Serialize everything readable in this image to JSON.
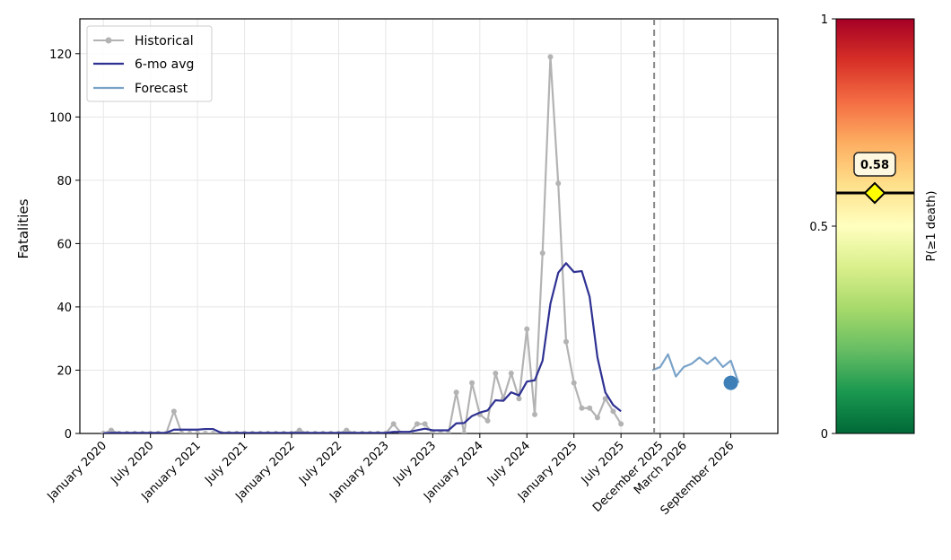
{
  "chart_data": [
    {
      "type": "line",
      "ylabel": "Fatalities",
      "ylim": [
        0,
        131
      ],
      "y_ticks": [
        0,
        20,
        40,
        60,
        80,
        100,
        120
      ],
      "x_ticks": [
        {
          "date": "2020-01",
          "label": "January 2020"
        },
        {
          "date": "2020-07",
          "label": "July 2020"
        },
        {
          "date": "2021-01",
          "label": "January 2021"
        },
        {
          "date": "2021-07",
          "label": "July 2021"
        },
        {
          "date": "2022-01",
          "label": "January 2022"
        },
        {
          "date": "2022-07",
          "label": "July 2022"
        },
        {
          "date": "2023-01",
          "label": "January 2023"
        },
        {
          "date": "2023-07",
          "label": "July 2023"
        },
        {
          "date": "2024-01",
          "label": "January 2024"
        },
        {
          "date": "2024-07",
          "label": "July 2024"
        },
        {
          "date": "2025-01",
          "label": "January 2025"
        },
        {
          "date": "2025-07",
          "label": "July 2025"
        },
        {
          "date": "2025-12",
          "label": "December 2025"
        },
        {
          "date": "2026-03",
          "label": "March 2026"
        },
        {
          "date": "2026-09",
          "label": "September 2026"
        }
      ],
      "grid": true,
      "legend_position": "top-left",
      "forecast_start": "2025-11",
      "series": [
        {
          "name": "Historical",
          "color": "#b3b3b3",
          "marker": "circle",
          "start": "2020-01",
          "values": [
            0,
            1,
            0,
            0,
            0,
            0,
            0,
            0,
            0,
            7,
            0,
            0,
            0,
            0,
            0,
            0,
            0,
            0,
            0,
            0,
            0,
            0,
            0,
            0,
            0,
            1,
            0,
            0,
            0,
            0,
            0,
            1,
            0,
            0,
            0,
            0,
            0,
            3,
            0,
            0,
            3,
            3,
            0,
            0,
            0,
            13,
            0,
            16,
            6,
            4,
            19,
            11,
            19,
            11,
            33,
            6,
            57,
            119,
            79,
            29,
            16,
            8,
            8,
            5,
            11,
            7,
            3
          ]
        },
        {
          "name": "6-mo avg",
          "color": "#2e3192",
          "start": "2020-01",
          "values": [
            0,
            0.2,
            0.2,
            0.2,
            0.2,
            0.2,
            0.2,
            0.2,
            0.2,
            1.2,
            1.2,
            1.2,
            1.2,
            1.4,
            1.4,
            0.2,
            0.2,
            0.2,
            0.2,
            0.2,
            0.2,
            0.2,
            0.2,
            0.2,
            0.2,
            0.2,
            0.2,
            0.2,
            0.2,
            0.2,
            0.2,
            0.2,
            0.2,
            0.2,
            0.2,
            0.2,
            0.2,
            0.5,
            0.5,
            0.5,
            1,
            1.5,
            1,
            1,
            1,
            3.2,
            3.3,
            5.5,
            6.6,
            7.3,
            10.5,
            10.3,
            13,
            12,
            16.4,
            16.8,
            23,
            41,
            50.8,
            53.8,
            51,
            51.3,
            43.2,
            24,
            13,
            9,
            7
          ]
        },
        {
          "name": "Forecast",
          "color": "#7aa3c9",
          "start": "2025-11",
          "values": [
            20,
            21,
            25,
            18,
            21,
            22,
            24,
            22,
            24,
            21,
            23,
            16
          ]
        }
      ],
      "highlight_point": {
        "date": "2026-09",
        "value": 16,
        "color": "#3f7fb8"
      }
    },
    {
      "type": "heatmap",
      "subtype": "colorbar",
      "ylabel": "P(≥1 death)",
      "ylim": [
        0,
        1
      ],
      "ticks": [
        {
          "value": 0,
          "label": "0"
        },
        {
          "value": 0.5,
          "label": "0.5"
        },
        {
          "value": 1,
          "label": "1"
        }
      ],
      "colormap": [
        "#006837",
        "#1a9850",
        "#66bd63",
        "#a6d96a",
        "#d9ef8b",
        "#ffffbf",
        "#fee08b",
        "#fdae61",
        "#f46d43",
        "#d73027",
        "#a50026"
      ],
      "marker_value": 0.58,
      "marker_label": "0.58",
      "marker_color": "#ffff00"
    }
  ]
}
